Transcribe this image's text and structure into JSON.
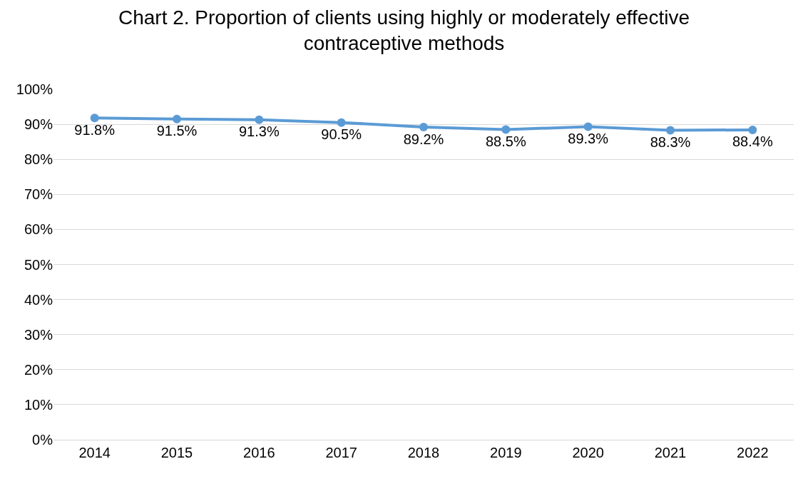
{
  "chart_data": {
    "type": "line",
    "title": "Chart 2. Proportion of clients using highly or moderately effective\ncontraceptive methods",
    "categories": [
      "2014",
      "2015",
      "2016",
      "2017",
      "2018",
      "2019",
      "2020",
      "2021",
      "2022"
    ],
    "series": [
      {
        "color": "#5b9bd5",
        "values": [
          91.8,
          91.5,
          91.3,
          90.5,
          89.2,
          88.5,
          89.3,
          88.3,
          88.4
        ],
        "value_labels": [
          "91.8%",
          "91.5%",
          "91.3%",
          "90.5%",
          "89.2%",
          "88.5%",
          "89.3%",
          "88.3%",
          "88.4%"
        ]
      }
    ],
    "ylim": [
      0,
      100
    ],
    "yticks": [
      {
        "value": 0,
        "label": "0%"
      },
      {
        "value": 10,
        "label": "10%"
      },
      {
        "value": 20,
        "label": "20%"
      },
      {
        "value": 30,
        "label": "30%"
      },
      {
        "value": 40,
        "label": "40%"
      },
      {
        "value": 50,
        "label": "50%"
      },
      {
        "value": 60,
        "label": "60%"
      },
      {
        "value": 70,
        "label": "70%"
      },
      {
        "value": 80,
        "label": "80%"
      },
      {
        "value": 90,
        "label": "90%"
      },
      {
        "value": 100,
        "label": "100%"
      }
    ],
    "grid": "y",
    "legend": false,
    "marker": "circle",
    "line_style": "solid"
  }
}
